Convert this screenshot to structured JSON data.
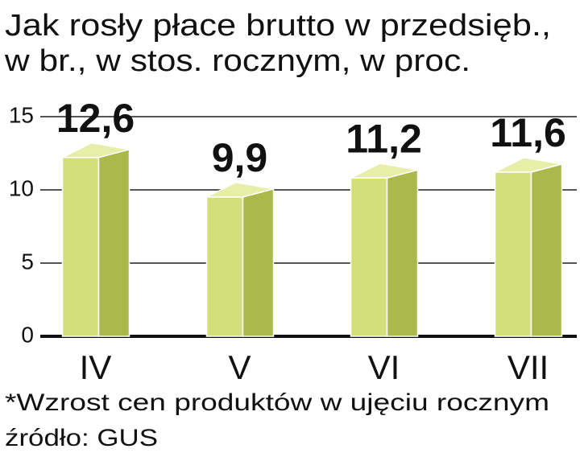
{
  "chart_data": {
    "type": "bar3d",
    "title": [
      "Jak rosły płace brutto w przedsięb.,",
      "w br., w stos. rocznym, w proc."
    ],
    "categories": [
      "IV",
      "V",
      "VI",
      "VII"
    ],
    "values": [
      12.6,
      9.9,
      11.2,
      11.6
    ],
    "value_labels": [
      "12,6",
      "9,9",
      "11,2",
      "11,6"
    ],
    "value_label_colors": [
      "#111111",
      "#111111",
      "#111111",
      "#c8102e"
    ],
    "colors": {
      "front": "#d3df7b",
      "side": "#a9b94a",
      "top": "#e6eea7"
    },
    "ylim": [
      0,
      15
    ],
    "yticks": [
      0,
      5,
      10,
      15
    ],
    "grid": true,
    "footnote": "*Wzrost cen produktów w ujęciu rocznym",
    "source": "źródło: GUS"
  }
}
